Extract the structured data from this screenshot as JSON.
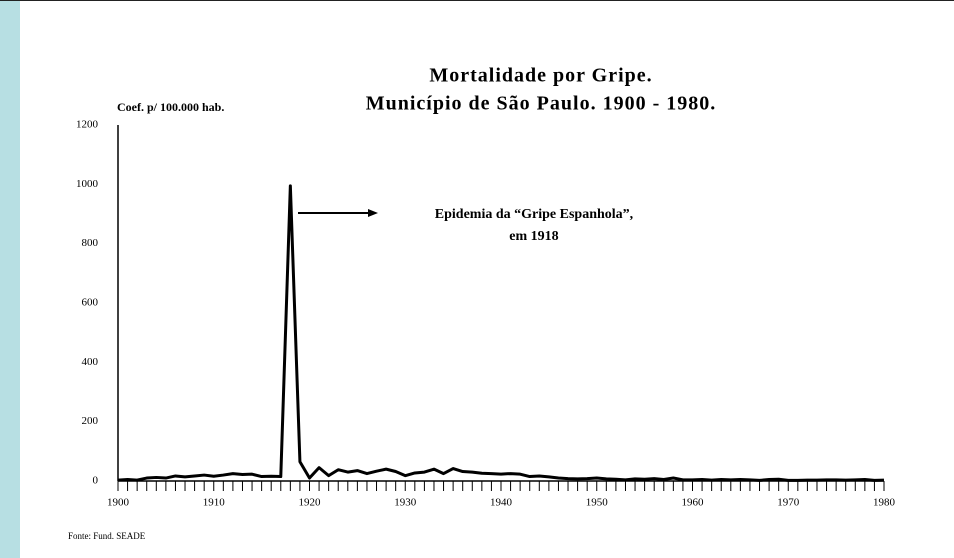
{
  "chart_data": {
    "type": "line",
    "title": [
      "Mortalidade por Gripe.",
      "Município de São Paulo. 1900 - 1980."
    ],
    "y_label": "Coef. p/ 100.000 hab.",
    "annotation": [
      "Epidemia da “Gripe Espanhola”,",
      "em 1918"
    ],
    "source": "Fonte: Fund. SEADE",
    "x": [
      1900,
      1901,
      1902,
      1903,
      1904,
      1905,
      1906,
      1907,
      1908,
      1909,
      1910,
      1911,
      1912,
      1913,
      1914,
      1915,
      1916,
      1917,
      1918,
      1919,
      1920,
      1921,
      1922,
      1923,
      1924,
      1925,
      1926,
      1927,
      1928,
      1929,
      1930,
      1931,
      1932,
      1933,
      1934,
      1935,
      1936,
      1937,
      1938,
      1939,
      1940,
      1941,
      1942,
      1943,
      1944,
      1945,
      1946,
      1947,
      1948,
      1949,
      1950,
      1951,
      1952,
      1953,
      1954,
      1955,
      1956,
      1957,
      1958,
      1959,
      1960,
      1961,
      1962,
      1963,
      1964,
      1965,
      1966,
      1967,
      1968,
      1969,
      1970,
      1971,
      1972,
      1973,
      1974,
      1975,
      1976,
      1977,
      1978,
      1979,
      1980
    ],
    "series": [
      {
        "name": null,
        "color": "#000000",
        "values": [
          3,
          5,
          3,
          10,
          12,
          10,
          17,
          14,
          17,
          20,
          16,
          20,
          25,
          22,
          23,
          15,
          16,
          15,
          995,
          65,
          10,
          45,
          18,
          38,
          30,
          35,
          25,
          33,
          40,
          32,
          18,
          27,
          30,
          40,
          25,
          42,
          32,
          30,
          26,
          25,
          23,
          25,
          23,
          15,
          17,
          14,
          10,
          8,
          7,
          8,
          10,
          7,
          6,
          4,
          7,
          6,
          8,
          5,
          10,
          4,
          4,
          5,
          3,
          5,
          4,
          5,
          4,
          2,
          5,
          6,
          2,
          2,
          3,
          3,
          4,
          4,
          3,
          4,
          5,
          2,
          3
        ]
      }
    ],
    "xlim": [
      1900,
      1980
    ],
    "xticks": [
      1900,
      1910,
      1920,
      1930,
      1940,
      1950,
      1960,
      1970,
      1980
    ],
    "ylim": [
      0,
      1200
    ],
    "yticks": [
      0,
      200,
      400,
      600,
      800,
      1000,
      1200
    ],
    "grid": false
  }
}
